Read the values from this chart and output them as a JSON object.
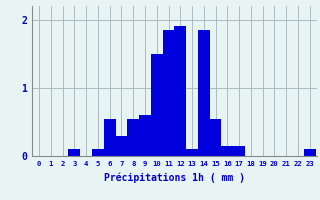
{
  "hours": [
    0,
    1,
    2,
    3,
    4,
    5,
    6,
    7,
    8,
    9,
    10,
    11,
    12,
    13,
    14,
    15,
    16,
    17,
    18,
    19,
    20,
    21,
    22,
    23
  ],
  "values": [
    0,
    0,
    0,
    0.1,
    0,
    0.1,
    0.55,
    0.3,
    0.55,
    0.6,
    1.5,
    1.85,
    1.9,
    0.1,
    1.85,
    0.55,
    0.15,
    0.15,
    0,
    0,
    0,
    0,
    0,
    0.1
  ],
  "bar_color": "#0000dd",
  "background_color": "#e8f4f4",
  "grid_color": "#aabcbc",
  "axis_color": "#0000cc",
  "tick_color": "#0000cc",
  "xlabel": "Précipitations 1h ( mm )",
  "ylim": [
    0,
    2.2
  ],
  "yticks": [
    0,
    1,
    2
  ],
  "xlim": [
    -0.6,
    23.6
  ]
}
